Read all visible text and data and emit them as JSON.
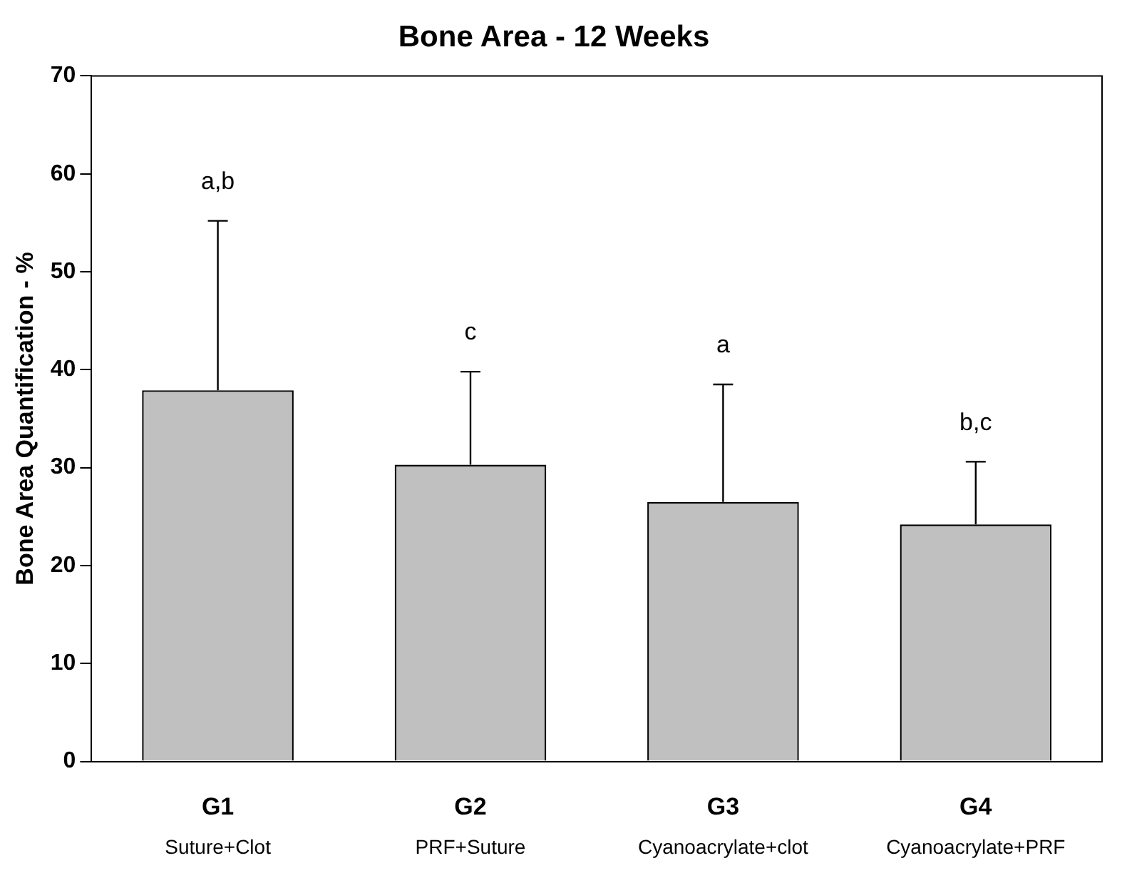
{
  "chart_data": {
    "type": "bar",
    "title": "Bone Area - 12 Weeks",
    "ylabel": "Bone Area Quantification - %",
    "categories": [
      "G1\nSuture+Clot",
      "G2\nPRF+Suture",
      "G3\nCyanoacrylate+clot",
      "G4\nCyanoacrylate+PRF"
    ],
    "values": [
      37.9,
      30.3,
      26.5,
      24.2
    ],
    "color": "#c0c0c0",
    "errors": [
      [
        37.9,
        55.2
      ],
      [
        30.3,
        39.8
      ],
      [
        26.5,
        38.5
      ],
      [
        24.2,
        30.6
      ]
    ],
    "ylim": [
      0,
      70
    ],
    "yticks": [
      0,
      10,
      20,
      30,
      40,
      50,
      60,
      70
    ],
    "grid": false,
    "legend": false,
    "annotations": [
      "a,b",
      "c",
      "a",
      "b,c"
    ]
  }
}
